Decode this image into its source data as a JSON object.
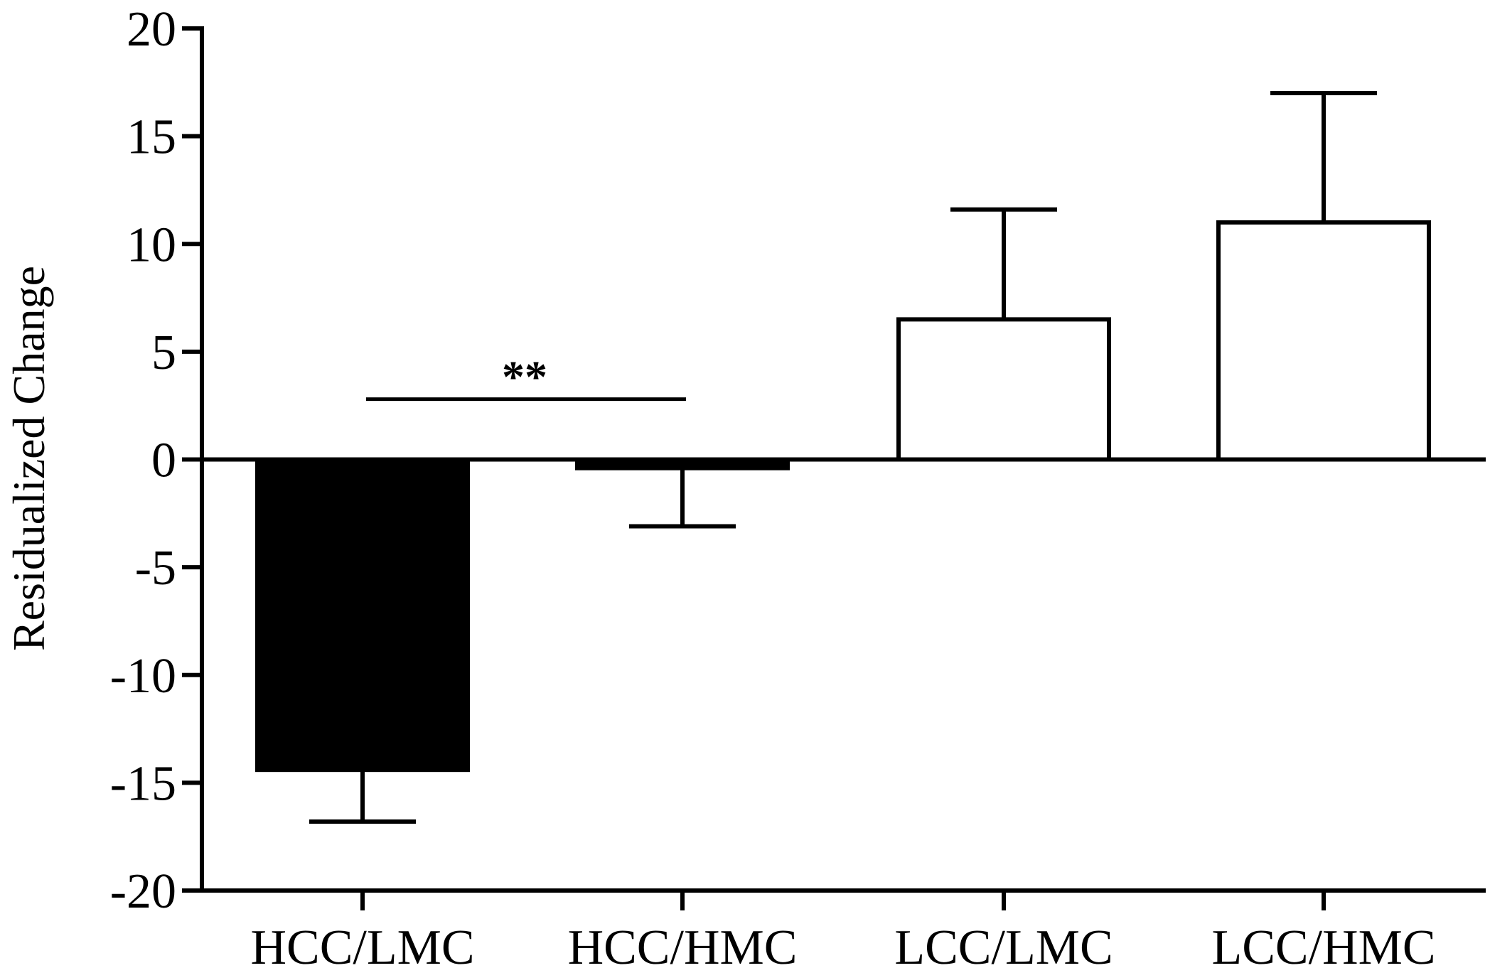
{
  "chart_data": {
    "type": "bar",
    "title": "",
    "xlabel": "",
    "ylabel": "Residualized Change",
    "ylim": [
      -20,
      20
    ],
    "yticks": [
      20,
      15,
      10,
      5,
      0,
      -5,
      -10,
      -15,
      -20
    ],
    "categories": [
      "HCC/LMC",
      "HCC/HMC",
      "LCC/LMC",
      "LCC/HMC"
    ],
    "values": [
      -14.4,
      -0.4,
      6.5,
      11.0
    ],
    "errors": [
      2.4,
      2.7,
      5.1,
      6.0
    ],
    "bar_fills": [
      "#000000",
      "#000000",
      "#ffffff",
      "#ffffff"
    ],
    "grid": false,
    "legend": "none",
    "annotations": [
      {
        "text": "**",
        "between": [
          "HCC/LMC",
          "HCC/HMC"
        ],
        "y": 2.8
      }
    ]
  }
}
